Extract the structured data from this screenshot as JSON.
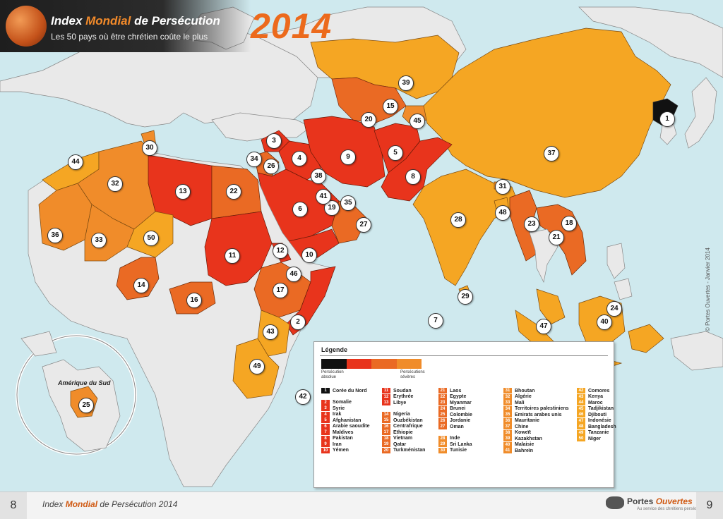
{
  "header": {
    "title_pre": "Index ",
    "title_accent": "Mondial",
    "title_post": " de Persécution",
    "subtitle": "Les 50 pays où être chrétien coûte le plus",
    "year": "2014"
  },
  "copyright": "© Portes Ouvertes - Janvier 2014",
  "inset_label": "Amérique du Sud",
  "footer": {
    "page_left": "8",
    "page_right": "9",
    "title_pre": "Index ",
    "title_bold": "Mondial",
    "title_post": " de Persécution 2014",
    "org_pre": "Portes ",
    "org_accent": "Ouvertes",
    "org_sub": "Au service des chrétiens persécutés"
  },
  "legend": {
    "title": "Légende",
    "scale_left": "Persécution absolue",
    "scale_right": "Persécutions sévères",
    "colors": [
      "#111111",
      "#e8341c",
      "#ea6a24",
      "#f08c2a",
      "#f5a623"
    ],
    "items": [
      {
        "rank": "1",
        "name": "Corée du Nord"
      },
      {
        "rank": "2",
        "name": "Somalie"
      },
      {
        "rank": "3",
        "name": "Syrie"
      },
      {
        "rank": "4",
        "name": "Irak"
      },
      {
        "rank": "5",
        "name": "Afghanistan"
      },
      {
        "rank": "6",
        "name": "Arabie saoudite"
      },
      {
        "rank": "7",
        "name": "Maldives"
      },
      {
        "rank": "8",
        "name": "Pakistan"
      },
      {
        "rank": "9",
        "name": "Iran"
      },
      {
        "rank": "10",
        "name": "Yémen"
      },
      {
        "rank": "11",
        "name": "Soudan"
      },
      {
        "rank": "12",
        "name": "Erythrée"
      },
      {
        "rank": "13",
        "name": "Libye"
      },
      {
        "rank": "14",
        "name": "Nigeria"
      },
      {
        "rank": "15",
        "name": "Ouzbékistan"
      },
      {
        "rank": "16",
        "name": "Centrafrique"
      },
      {
        "rank": "17",
        "name": "Ethiopie"
      },
      {
        "rank": "18",
        "name": "Vietnam"
      },
      {
        "rank": "19",
        "name": "Qatar"
      },
      {
        "rank": "20",
        "name": "Turkménistan"
      },
      {
        "rank": "21",
        "name": "Laos"
      },
      {
        "rank": "22",
        "name": "Egypte"
      },
      {
        "rank": "23",
        "name": "Myanmar"
      },
      {
        "rank": "24",
        "name": "Brunei"
      },
      {
        "rank": "25",
        "name": "Colombie"
      },
      {
        "rank": "26",
        "name": "Jordanie"
      },
      {
        "rank": "27",
        "name": "Oman"
      },
      {
        "rank": "28",
        "name": "Inde"
      },
      {
        "rank": "29",
        "name": "Sri Lanka"
      },
      {
        "rank": "30",
        "name": "Tunisie"
      },
      {
        "rank": "31",
        "name": "Bhoutan"
      },
      {
        "rank": "32",
        "name": "Algérie"
      },
      {
        "rank": "33",
        "name": "Mali"
      },
      {
        "rank": "34",
        "name": "Territoires palestiniens"
      },
      {
        "rank": "35",
        "name": "Emirats arabes unis"
      },
      {
        "rank": "36",
        "name": "Mauritanie"
      },
      {
        "rank": "37",
        "name": "Chine"
      },
      {
        "rank": "38",
        "name": "Koweït"
      },
      {
        "rank": "39",
        "name": "Kazakhstan"
      },
      {
        "rank": "40",
        "name": "Malaisie"
      },
      {
        "rank": "41",
        "name": "Bahreïn"
      },
      {
        "rank": "42",
        "name": "Comores"
      },
      {
        "rank": "43",
        "name": "Kenya"
      },
      {
        "rank": "44",
        "name": "Maroc"
      },
      {
        "rank": "45",
        "name": "Tadjikistan"
      },
      {
        "rank": "46",
        "name": "Djibouti"
      },
      {
        "rank": "47",
        "name": "Indonésie"
      },
      {
        "rank": "48",
        "name": "Bangladesh"
      },
      {
        "rank": "49",
        "name": "Tanzanie"
      },
      {
        "rank": "50",
        "name": "Niger"
      }
    ]
  }
}
